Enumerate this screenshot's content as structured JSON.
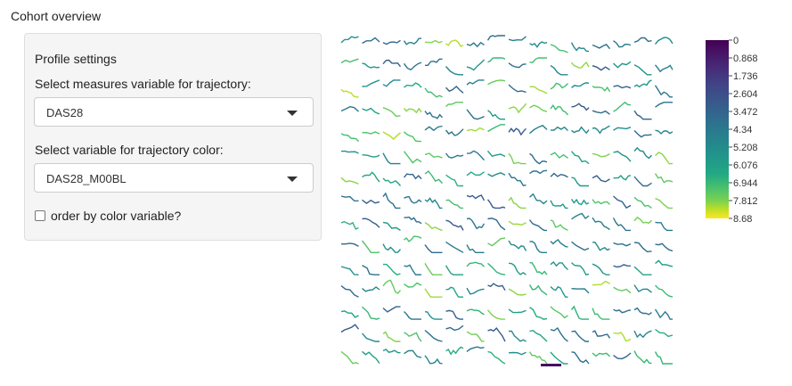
{
  "page_title": "Cohort overview",
  "panel": {
    "heading": "Profile settings",
    "measures_label": "Select measures variable for trajectory:",
    "measures_value": "DAS28",
    "color_label": "Select variable for trajectory color:",
    "color_value": "DAS28_M00BL",
    "order_label": "order by color variable?",
    "order_checked": false
  },
  "chart_data": {
    "type": "line",
    "description_grid": "small multiples",
    "rows": 15,
    "cols": 16,
    "colorscale": "viridis-reversed",
    "color_range": [
      0,
      8.68
    ],
    "colorbar_ticks": [
      "0",
      "0.868",
      "1.736",
      "2.604",
      "3.472",
      "4.34",
      "5.208",
      "6.076",
      "6.944",
      "7.812",
      "8.68"
    ]
  }
}
